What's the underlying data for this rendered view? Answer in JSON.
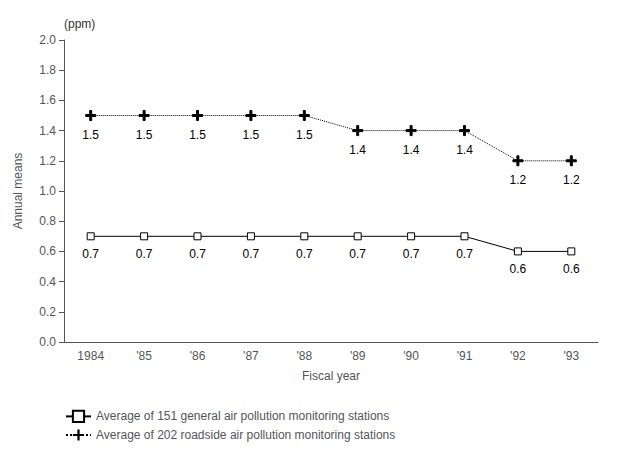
{
  "chart_data": {
    "type": "line",
    "categories": [
      "1984",
      "'85",
      "'86",
      "'87",
      "'88",
      "'89",
      "'90",
      "'91",
      "'92",
      "'93"
    ],
    "series": [
      {
        "name": "Average of 151 general air pollution monitoring stations",
        "color": "#000000",
        "marker": "square",
        "line_style": "solid",
        "values": [
          0.7,
          0.7,
          0.7,
          0.7,
          0.7,
          0.7,
          0.7,
          0.7,
          0.6,
          0.6
        ]
      },
      {
        "name": "Average of 202 roadside air pollution monitoring stations",
        "color": "#000000",
        "marker": "plus",
        "line_style": "dotted",
        "values": [
          1.5,
          1.5,
          1.5,
          1.5,
          1.5,
          1.4,
          1.4,
          1.4,
          1.2,
          1.2
        ]
      }
    ],
    "xlabel": "Fiscal year",
    "ylabel": "Annual means",
    "annotation": "(ppm)",
    "ylim": [
      0.0,
      2.0
    ],
    "yticks": [
      {
        "value": 0,
        "label": "0.0"
      },
      0.2,
      0.4,
      0.6,
      0.8,
      {
        "value": 1,
        "label": "1.0"
      },
      1.2,
      1.4,
      1.6,
      1.8,
      {
        "value": 2,
        "label": "2.0"
      }
    ],
    "grid": false,
    "legend": "bottom",
    "data_labels": true
  }
}
